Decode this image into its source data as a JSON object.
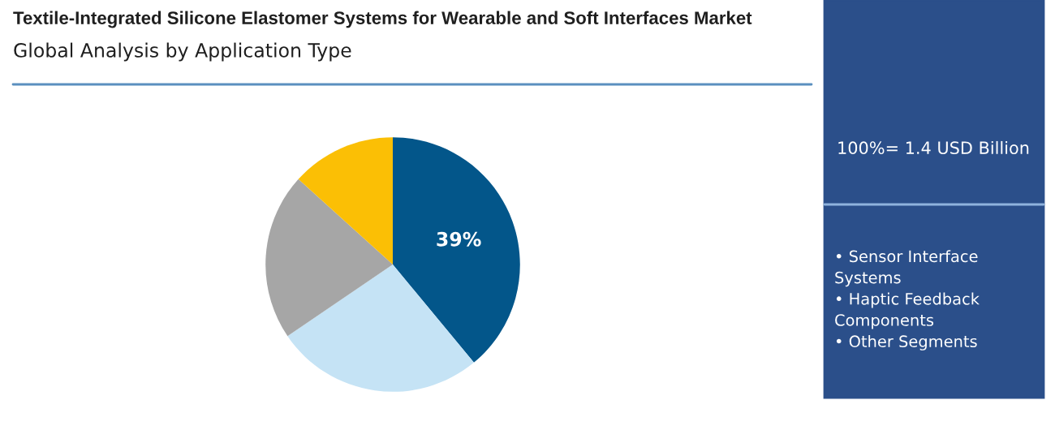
{
  "chart_data": {
    "type": "pie",
    "title": "Textile-Integrated Silicone Elastomer Systems for Wearable and Soft Interfaces Market",
    "subtitle": "Global Analysis by Application Type",
    "categories": [
      null,
      null,
      null,
      null
    ],
    "values": [
      39,
      26.5,
      21.2,
      13.3
    ],
    "colors": [
      "#03568a",
      "#c5e3f5",
      "#a6a6a6",
      "#fbbf05"
    ],
    "value_labels": [
      "39%",
      null,
      null,
      null
    ],
    "annotations": [
      "100%= 1.4 USD Billion",
      "• Sensor Interface\nSystems\n• Haptic Feedback\nComponents\n• Other Segments"
    ],
    "legend": false
  }
}
